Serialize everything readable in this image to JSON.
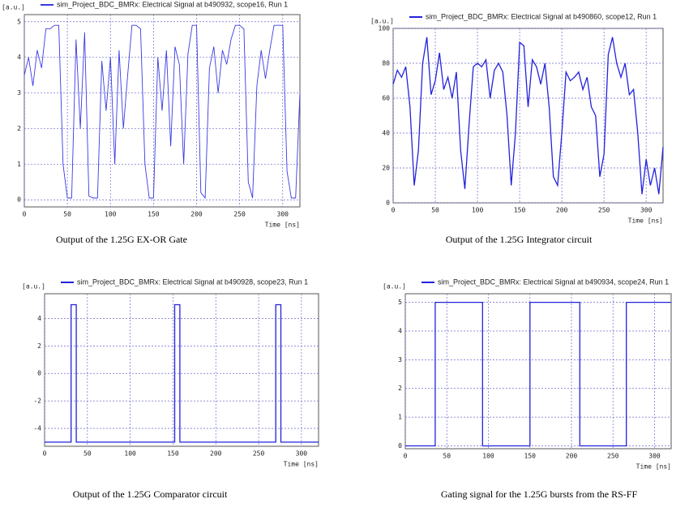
{
  "chart_data": [
    {
      "type": "line",
      "caption": "Output of the 1.25G EX-OR Gate",
      "ylabel": "[a.u.]",
      "xlabel": "Time [ns]",
      "x": [
        0,
        5,
        10,
        15,
        20,
        25,
        30,
        35,
        40,
        45,
        50,
        55,
        60,
        65,
        70,
        75,
        80,
        85,
        90,
        95,
        100,
        105,
        110,
        115,
        120,
        125,
        130,
        135,
        140,
        145,
        150,
        155,
        160,
        165,
        170,
        175,
        180,
        185,
        190,
        195,
        200,
        205,
        210,
        215,
        220,
        225,
        230,
        235,
        240,
        245,
        250,
        255,
        260,
        265,
        270,
        275,
        280,
        285,
        290,
        295,
        300,
        305,
        310,
        315,
        320
      ],
      "series": [
        {
          "name": "sim_Project_BDC_BMRx: Electrical Signal at b490932, scope16, Run 1",
          "color": "#3a3ae6",
          "values": [
            3.5,
            4,
            3.2,
            4.2,
            3.7,
            4.8,
            4.8,
            4.9,
            4.9,
            1,
            0.05,
            0.05,
            4.5,
            2,
            4.7,
            0.1,
            0.05,
            0.05,
            3.9,
            2.5,
            4,
            1,
            4.2,
            2,
            3.5,
            4.9,
            4.9,
            4.8,
            1,
            0.05,
            0.05,
            4,
            2.5,
            4.2,
            1.5,
            4.3,
            3.8,
            1,
            4.1,
            4.9,
            4.9,
            0.2,
            0.05,
            3.7,
            4.3,
            3,
            4.2,
            3.8,
            4.5,
            4.9,
            4.9,
            4.8,
            0.5,
            0.05,
            3.2,
            4.2,
            3.4,
            4.2,
            4.9,
            4.9,
            4.9,
            0.8,
            0.05,
            0.05,
            3
          ]
        }
      ],
      "xlim": [
        0,
        320
      ],
      "xticks": [
        0,
        50,
        100,
        150,
        200,
        250,
        300
      ],
      "ylim": [
        -0.2,
        5.2
      ],
      "yticks": [
        0,
        1,
        2,
        3,
        4,
        5
      ],
      "grid": true
    },
    {
      "type": "line",
      "caption": "Output of the 1.25G Integrator circuit",
      "ylabel": "[a.u.]",
      "xlabel": "Time [ns]",
      "x": [
        0,
        5,
        10,
        15,
        20,
        25,
        30,
        35,
        40,
        45,
        50,
        55,
        60,
        65,
        70,
        75,
        80,
        85,
        90,
        95,
        100,
        105,
        110,
        115,
        120,
        125,
        130,
        135,
        140,
        145,
        150,
        155,
        160,
        165,
        170,
        175,
        180,
        185,
        190,
        195,
        200,
        205,
        210,
        215,
        220,
        225,
        230,
        235,
        240,
        245,
        250,
        255,
        260,
        265,
        270,
        275,
        280,
        285,
        290,
        295,
        300,
        305,
        310,
        315,
        320
      ],
      "series": [
        {
          "name": "sim_Project_BDC_BMRx: Electrical Signal at b490860, scope12, Run 1",
          "color": "#2222dd",
          "values": [
            68,
            76,
            72,
            78,
            55,
            10,
            30,
            80,
            95,
            62,
            70,
            86,
            65,
            72,
            60,
            75,
            30,
            8,
            45,
            78,
            80,
            78,
            82,
            60,
            76,
            80,
            75,
            50,
            10,
            40,
            92,
            90,
            55,
            82,
            78,
            68,
            80,
            55,
            15,
            10,
            40,
            75,
            70,
            72,
            75,
            65,
            72,
            55,
            50,
            15,
            28,
            85,
            95,
            80,
            72,
            80,
            62,
            65,
            40,
            5,
            25,
            10,
            20,
            5,
            32
          ]
        }
      ],
      "xlim": [
        0,
        320
      ],
      "xticks": [
        0,
        50,
        100,
        150,
        200,
        250,
        300
      ],
      "ylim": [
        0,
        100
      ],
      "yticks": [
        0,
        20,
        40,
        60,
        80,
        100
      ],
      "grid": true
    },
    {
      "type": "line",
      "caption": "Output of the 1.25G Comparator circuit",
      "ylabel": "[a.u.]",
      "xlabel": "Time [ns]",
      "x": [
        0,
        31,
        31,
        37,
        37,
        152,
        152,
        158,
        158,
        270,
        270,
        276,
        276,
        320
      ],
      "series": [
        {
          "name": "sim_Project_BDC_BMRx: Electrical Signal at b490928, scope23, Run 1",
          "color": "#2222dd",
          "values": [
            -5,
            -5,
            5,
            5,
            -5,
            -5,
            5,
            5,
            -5,
            -5,
            5,
            5,
            -5,
            -5
          ]
        }
      ],
      "xlim": [
        0,
        320
      ],
      "xticks": [
        0,
        50,
        100,
        150,
        200,
        250,
        300
      ],
      "ylim": [
        -5.3,
        5.8
      ],
      "yticks": [
        -4,
        -2,
        0,
        2,
        4
      ],
      "grid": true
    },
    {
      "type": "line",
      "caption": "Gating signal for the 1.25G bursts from the RS-FF",
      "ylabel": "[a.u.]",
      "xlabel": "Time [ns]",
      "x": [
        0,
        36,
        36,
        93,
        93,
        150,
        150,
        210,
        210,
        266,
        266,
        320
      ],
      "series": [
        {
          "name": "sim_Project_BDC_BMRx: Electrical Signal at b490934, scope24, Run 1",
          "color": "#2222dd",
          "values": [
            0,
            0,
            5,
            5,
            0,
            0,
            5,
            5,
            0,
            0,
            5,
            5
          ]
        }
      ],
      "xlim": [
        0,
        320
      ],
      "xticks": [
        0,
        50,
        100,
        150,
        200,
        250,
        300
      ],
      "ylim": [
        -0.1,
        5.3
      ],
      "yticks": [
        0,
        1,
        2,
        3,
        4,
        5
      ],
      "grid": true
    }
  ]
}
